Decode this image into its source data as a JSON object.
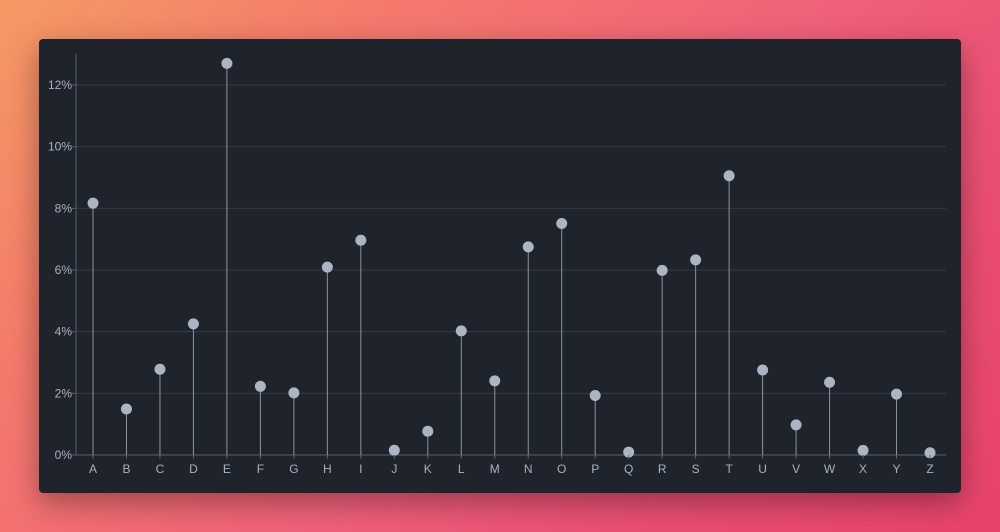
{
  "chart_data": {
    "type": "lollipop",
    "title": "",
    "xlabel": "",
    "ylabel": "",
    "categories": [
      "A",
      "B",
      "C",
      "D",
      "E",
      "F",
      "G",
      "H",
      "I",
      "J",
      "K",
      "L",
      "M",
      "N",
      "O",
      "P",
      "Q",
      "R",
      "S",
      "T",
      "U",
      "V",
      "W",
      "X",
      "Y",
      "Z"
    ],
    "values": [
      8.167,
      1.492,
      2.782,
      4.253,
      12.702,
      2.228,
      2.015,
      6.094,
      6.966,
      0.153,
      0.772,
      4.025,
      2.406,
      6.749,
      7.507,
      1.929,
      0.095,
      5.987,
      6.327,
      9.056,
      2.758,
      0.978,
      2.36,
      0.15,
      1.974,
      0.074
    ],
    "ylim": [
      0,
      13
    ],
    "yticks": [
      0,
      2,
      4,
      6,
      8,
      10,
      12
    ],
    "ytick_labels": [
      "0%",
      "2%",
      "4%",
      "6%",
      "8%",
      "10%",
      "12%"
    ],
    "grid": "horizontal",
    "colors": {
      "background": "#1f232b",
      "grid": "#343a45",
      "axis": "#59606d",
      "stem": "#8d93a0",
      "dot": "#aeb4c3",
      "text": "#a9b0bf"
    }
  }
}
